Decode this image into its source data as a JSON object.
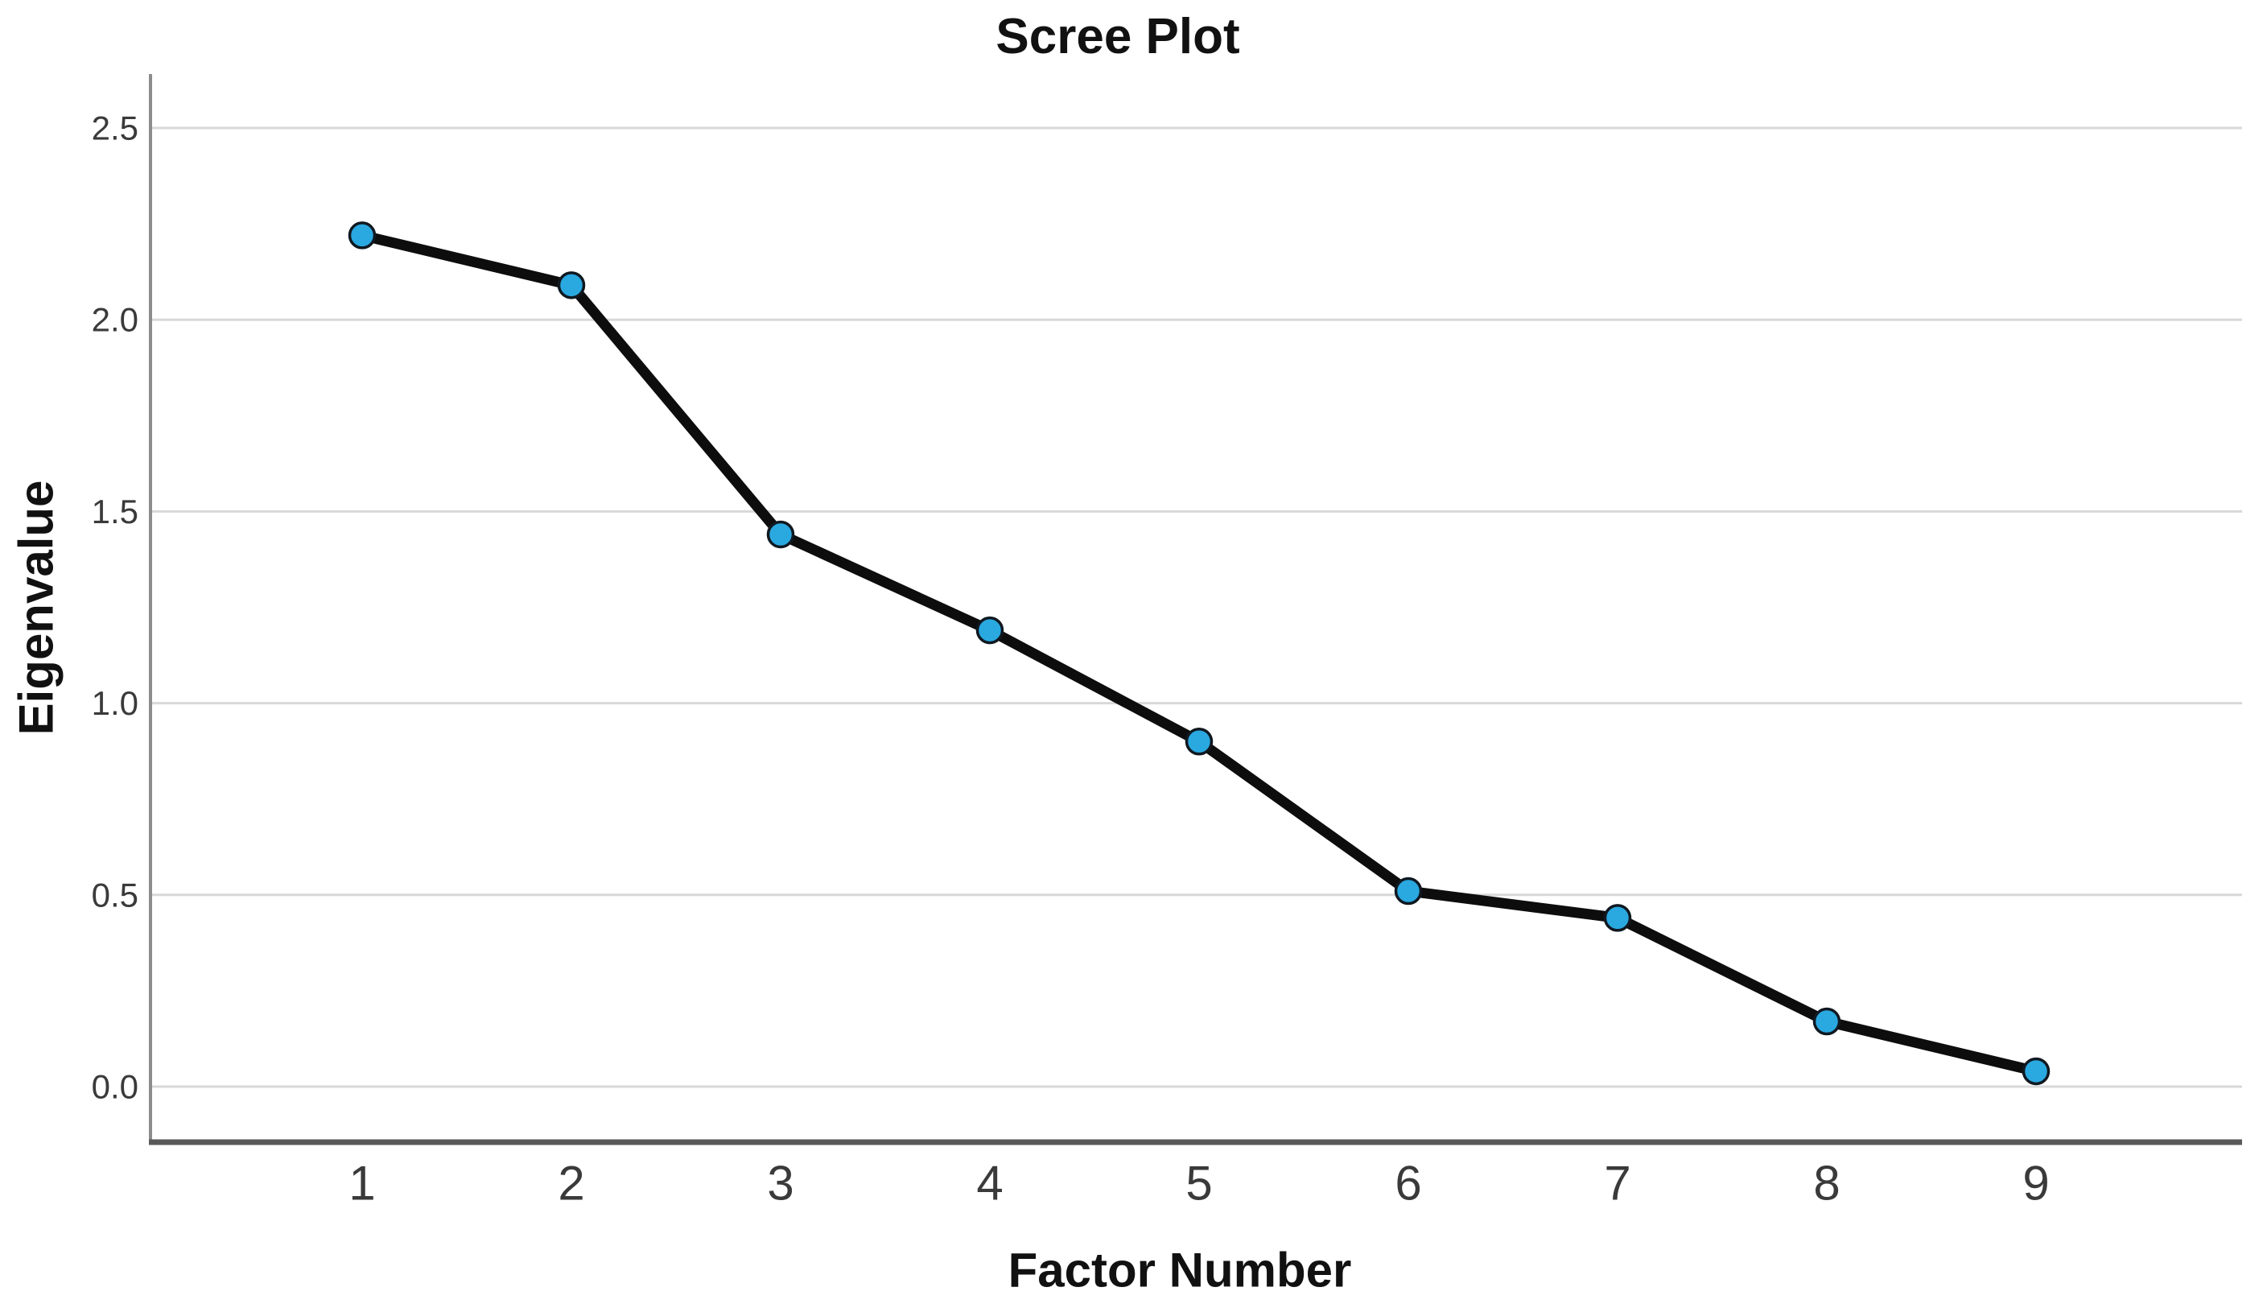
{
  "page": {
    "background": "#ffffff"
  },
  "chart_data": {
    "type": "line",
    "title": "Scree Plot",
    "xlabel": "Factor Number",
    "ylabel": "Eigenvalue",
    "categories": [
      1,
      2,
      3,
      4,
      5,
      6,
      7,
      8,
      9
    ],
    "x_tick_labels": [
      "1",
      "2",
      "3",
      "4",
      "5",
      "6",
      "7",
      "8",
      "9"
    ],
    "series": [
      {
        "name": "Eigenvalue",
        "values": [
          2.22,
          2.09,
          1.44,
          1.19,
          0.9,
          0.51,
          0.44,
          0.17,
          0.04
        ]
      }
    ],
    "y_ticks": [
      {
        "value": 0.0,
        "label": "0.0"
      },
      {
        "value": 0.5,
        "label": "0.5"
      },
      {
        "value": 1.0,
        "label": "1.0"
      },
      {
        "value": 1.5,
        "label": "1.5"
      },
      {
        "value": 2.0,
        "label": "2.0"
      },
      {
        "value": 2.5,
        "label": "2.5"
      }
    ],
    "ylim": [
      -0.14,
      2.64
    ],
    "xlim": [
      0,
      10
    ],
    "grid": "horizontal-only",
    "legend": "none",
    "marker": "circle",
    "colors": {
      "line": "#0d0d0d",
      "marker_fill": "#2aa8e0",
      "marker_stroke": "#101820",
      "gridline": "#d8d8d8",
      "left_spine": "#8c8c8c",
      "bottom_spine": "#595959",
      "tick_text": "#3a3a3a"
    }
  }
}
